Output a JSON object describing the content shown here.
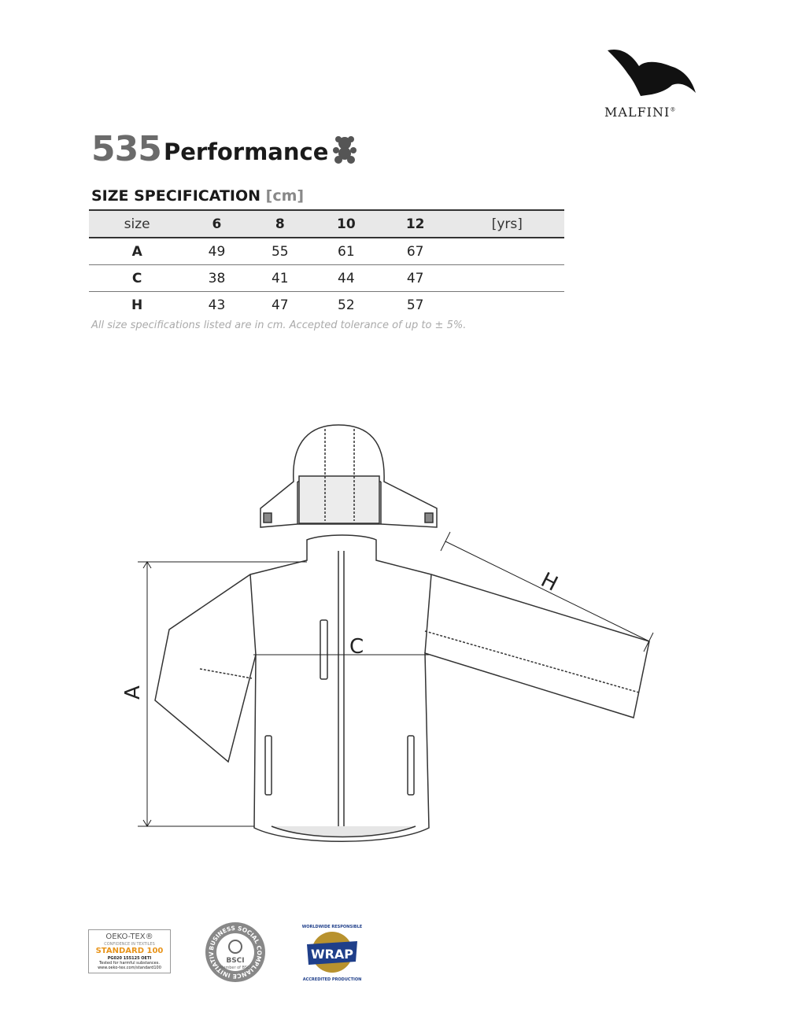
{
  "brand": {
    "name": "MALFINI",
    "mark": "®"
  },
  "product": {
    "number": "535",
    "name": "Performance",
    "icon": "teddy-bear-icon"
  },
  "spec": {
    "title": "SIZE SPECIFICATION",
    "unit": "[cm]"
  },
  "table": {
    "headers": [
      "size",
      "6",
      "8",
      "10",
      "12",
      "[yrs]"
    ],
    "rows": [
      {
        "label": "A",
        "values": [
          "49",
          "55",
          "61",
          "67"
        ]
      },
      {
        "label": "C",
        "values": [
          "38",
          "41",
          "44",
          "47"
        ]
      },
      {
        "label": "H",
        "values": [
          "43",
          "47",
          "52",
          "57"
        ]
      }
    ]
  },
  "note": "All size specifications listed are in cm. Accepted tolerance of up to ± 5%.",
  "diagram": {
    "labels": {
      "a": "A",
      "c": "C",
      "h": "H"
    }
  },
  "certs": {
    "oeko": {
      "title": "OEKO-TEX®",
      "sub": "CONFIDENCE IN TEXTILES",
      "standard": "STANDARD 100",
      "code": "PG020 155125 OETI",
      "line1": "Tested for harmful substances.",
      "line2": "www.oeko-tex.com/standard100"
    },
    "bsci": {
      "ring": "BUSINESS SOCIAL COMPLIANCE INITIATIVE",
      "label": "BSCI",
      "member": "Member of BSCI"
    },
    "wrap": {
      "top": "WORLDWIDE RESPONSIBLE",
      "label": "WRAP",
      "bottom": "ACCREDITED PRODUCTION"
    }
  }
}
